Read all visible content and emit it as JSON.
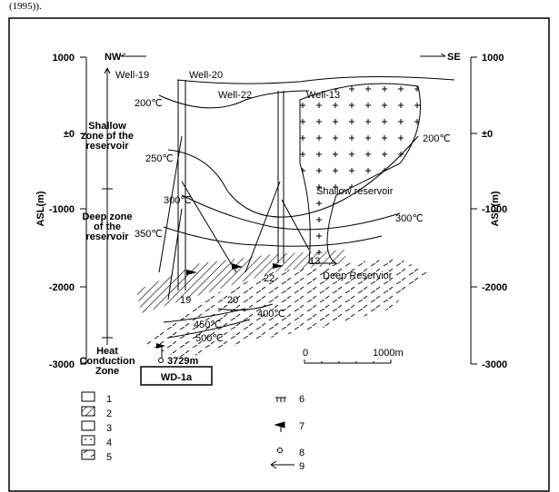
{
  "header": {
    "caption_fragment": "(1995))."
  },
  "figure": {
    "directions": {
      "nw": "NW",
      "se": "SE"
    },
    "left_axis": {
      "label": "ASL(m)",
      "ticks": [
        "1000",
        "±0",
        "-1000",
        "-2000",
        "-3000"
      ]
    },
    "right_axis": {
      "label": "ASL(m)",
      "ticks": [
        "1000",
        "±0",
        "-1000",
        "-2000",
        "-3000"
      ]
    },
    "wells": [
      "Well-19",
      "Well-20",
      "Well-22",
      "Well-13"
    ],
    "isotherms": [
      "200℃",
      "200℃",
      "250℃",
      "300℃",
      "300℃",
      "350℃",
      "400℃",
      "450℃",
      "500℃"
    ],
    "zones": [
      [
        "Shallow",
        "zone of the",
        "reservoir"
      ],
      [
        "Deep zone",
        "of the",
        "reservoir"
      ],
      [
        "Heat",
        "Conduction",
        "Zone"
      ]
    ],
    "reservoirs": [
      "Shallow reservoir",
      "Deep Reservior"
    ],
    "well_numbers": [
      "13",
      "22",
      "19",
      "20"
    ],
    "well_depth": "3729m",
    "well_name": "WD-1a",
    "scale": [
      "0",
      "1000m"
    ],
    "legend": [
      "1",
      "2",
      "3",
      "4",
      "5",
      "6",
      "7",
      "8",
      "9"
    ]
  }
}
